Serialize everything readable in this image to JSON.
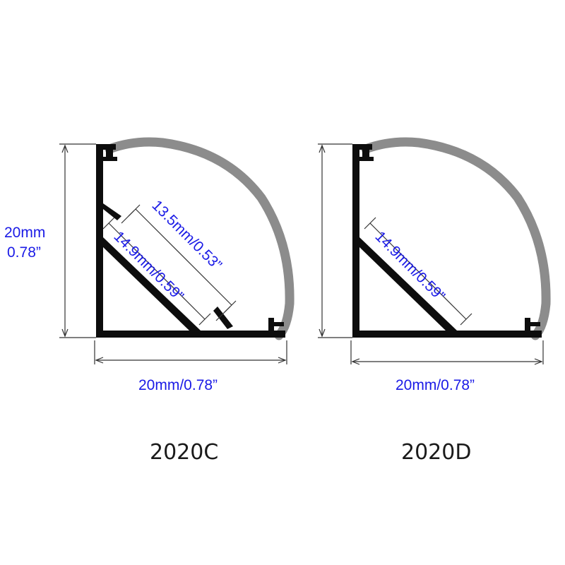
{
  "profiles": [
    {
      "id": "2020C",
      "name": "2020C",
      "height_mm": "20mm",
      "height_in": "0.78”",
      "width": "20mm/0.78”",
      "inner_width": "13.5mm/0.53”",
      "strip_width": "14.9mm/0.59”"
    },
    {
      "id": "2020D",
      "name": "2020D",
      "width": "20mm/0.78”",
      "strip_width": "14.9mm/0.59”"
    }
  ],
  "colors": {
    "profile": "#0d0d0d",
    "diffuser": "#8c8c8c",
    "dimension_text": "#1a1ae6",
    "dimension_line": "#333333"
  }
}
